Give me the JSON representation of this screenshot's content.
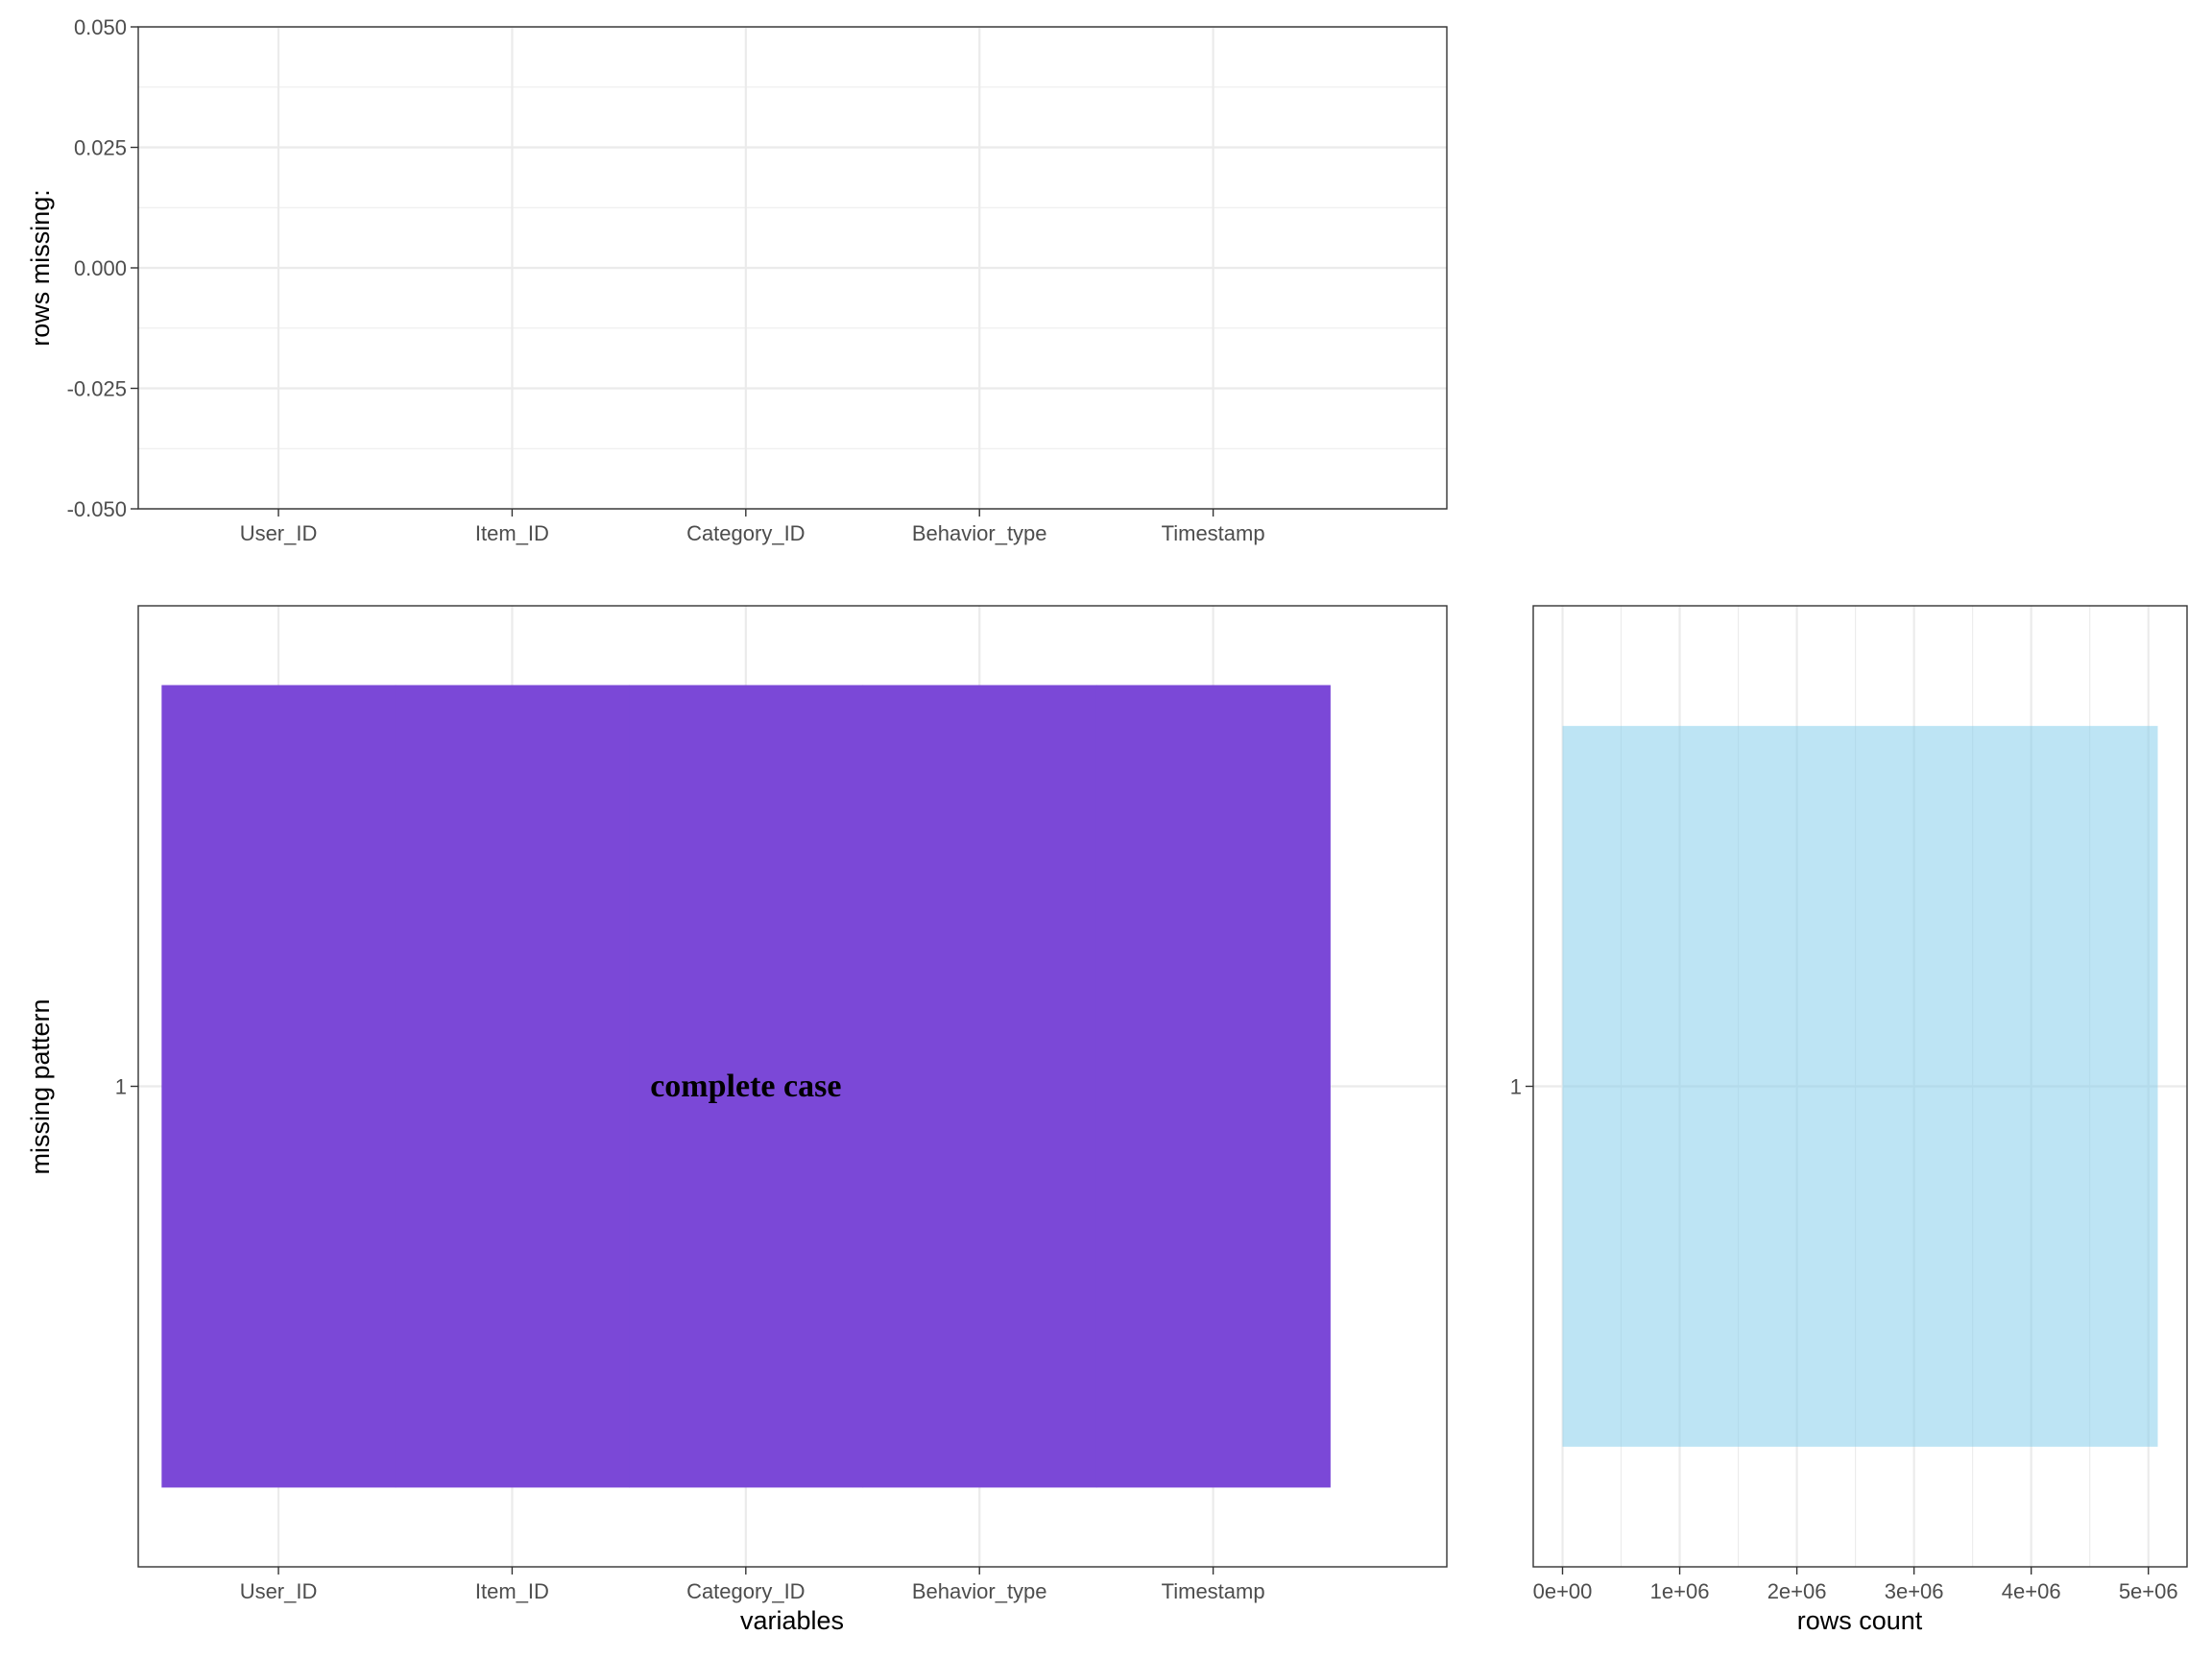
{
  "colors": {
    "pattern_fill": "#7b48d7",
    "count_fill": "#87ceeb"
  },
  "chart_data": [
    {
      "type": "bar",
      "title": "",
      "xlabel": "",
      "ylabel": "rows missing:",
      "categories": [
        "User_ID",
        "Item_ID",
        "Category_ID",
        "Behavior_type",
        "Timestamp"
      ],
      "values": [
        0,
        0,
        0,
        0,
        0
      ],
      "ylim": [
        -0.05,
        0.05
      ],
      "y_ticks": [
        "-0.050",
        "-0.025",
        "0.000",
        "0.025",
        "0.050"
      ],
      "grid": true
    },
    {
      "type": "heatmap",
      "title": "",
      "xlabel": "variables",
      "ylabel": "missing pattern",
      "categories": [
        "User_ID",
        "Item_ID",
        "Category_ID",
        "Behavior_type",
        "Timestamp"
      ],
      "y_ticks": [
        "1"
      ],
      "patterns": [
        {
          "pattern": "1",
          "label": "complete case",
          "missing": [
            false,
            false,
            false,
            false,
            false
          ]
        }
      ],
      "grid": true
    },
    {
      "type": "bar",
      "orientation": "horizontal",
      "title": "",
      "xlabel": "rows count",
      "ylabel": "",
      "categories": [
        "1"
      ],
      "values": [
        5080000
      ],
      "xlim": [
        -250000,
        5330000
      ],
      "x_ticks": [
        "0e+00",
        "1e+06",
        "2e+06",
        "3e+06",
        "4e+06",
        "5e+06"
      ],
      "grid": true
    }
  ]
}
